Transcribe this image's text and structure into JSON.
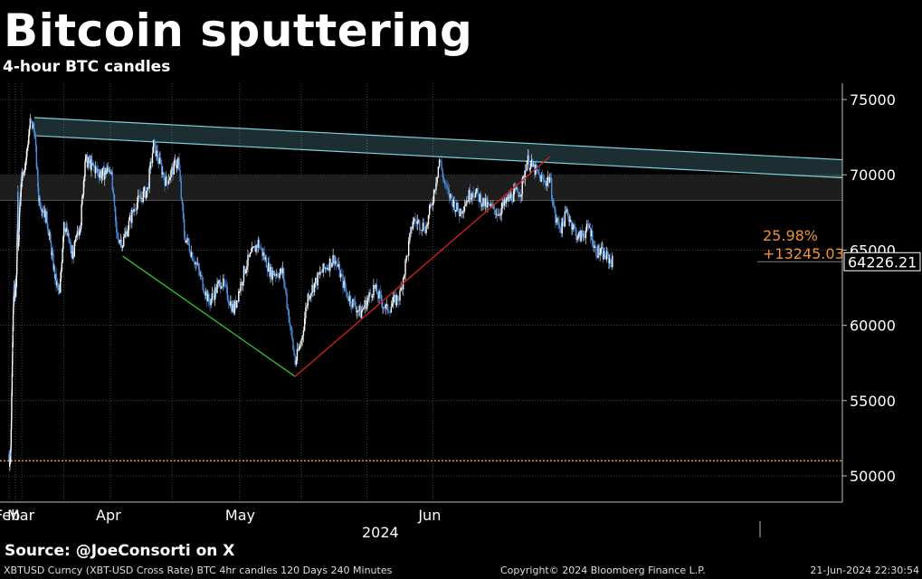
{
  "title": "Bitcoin sputtering",
  "subtitle": "4-hour BTC candles",
  "source": "Source: @JoeConsorti on X",
  "footer": {
    "left": "XBTUSD Curncy (XBT-USD Cross Rate) BTC 4hr candles 120 Days 240 Minutes",
    "center": "Copyright© 2024 Bloomberg Finance L.P.",
    "right": "21-Jun-2024 22:30:54"
  },
  "colors": {
    "background": "#000000",
    "candle_up": "#ffffff",
    "candle_down": "#4a8fe0",
    "channel": "#7fd3e0",
    "support_green": "#2ec42e",
    "support_red": "#d42020",
    "reference": "#f0913a",
    "grid": "#555555"
  },
  "chart_data": {
    "type": "candlestick",
    "title": "Bitcoin sputtering",
    "subtitle": "4-hour BTC candles",
    "x_labels": [
      "Feb",
      "Mar",
      "Apr",
      "May",
      "Jun"
    ],
    "year_label": "2024",
    "y_ticks": [
      50000,
      55000,
      60000,
      65000,
      70000,
      75000
    ],
    "ylim": [
      47500,
      76000
    ],
    "last_price": "64226.21",
    "change_pct": "25.98%",
    "change_abs": "+13245.03",
    "reference_level": 51000,
    "price_path": [
      [
        "2024-02-20",
        51400
      ],
      [
        "2024-02-22",
        51000
      ],
      [
        "2024-02-23",
        51800
      ],
      [
        "2024-02-25",
        57000
      ],
      [
        "2024-02-27",
        61500
      ],
      [
        "2024-02-28",
        62500
      ],
      [
        "2024-03-01",
        62000
      ],
      [
        "2024-03-03",
        63000
      ],
      [
        "2024-03-05",
        68500
      ],
      [
        "2024-03-06",
        65000
      ],
      [
        "2024-03-08",
        68000
      ],
      [
        "2024-03-10",
        69000
      ],
      [
        "2024-03-12",
        71000
      ],
      [
        "2024-03-13",
        73500
      ],
      [
        "2024-03-14",
        73000
      ],
      [
        "2024-03-15",
        68500
      ],
      [
        "2024-03-17",
        67000
      ],
      [
        "2024-03-19",
        63000
      ],
      [
        "2024-03-20",
        62000
      ],
      [
        "2024-03-21",
        67000
      ],
      [
        "2024-03-23",
        64500
      ],
      [
        "2024-03-25",
        67000
      ],
      [
        "2024-03-26",
        71000
      ],
      [
        "2024-03-28",
        70500
      ],
      [
        "2024-03-30",
        70000
      ],
      [
        "2024-04-01",
        70500
      ],
      [
        "2024-04-02",
        66000
      ],
      [
        "2024-04-03",
        65500
      ],
      [
        "2024-04-05",
        68000
      ],
      [
        "2024-04-07",
        69000
      ],
      [
        "2024-04-08",
        72000
      ],
      [
        "2024-04-10",
        69500
      ],
      [
        "2024-04-12",
        71000
      ],
      [
        "2024-04-13",
        66000
      ],
      [
        "2024-04-15",
        64000
      ],
      [
        "2024-04-17",
        61500
      ],
      [
        "2024-04-19",
        63000
      ],
      [
        "2024-04-21",
        61000
      ],
      [
        "2024-04-23",
        64000
      ],
      [
        "2024-04-25",
        65500
      ],
      [
        "2024-04-27",
        63500
      ],
      [
        "2024-04-29",
        63500
      ],
      [
        "2024-04-30",
        60500
      ],
      [
        "2024-05-01",
        57500
      ],
      [
        "2024-05-02",
        59000
      ],
      [
        "2024-05-03",
        62000
      ],
      [
        "2024-05-05",
        63500
      ],
      [
        "2024-05-07",
        64500
      ],
      [
        "2024-05-09",
        62000
      ],
      [
        "2024-05-11",
        60800
      ],
      [
        "2024-05-13",
        62500
      ],
      [
        "2024-05-15",
        61000
      ],
      [
        "2024-05-17",
        62000
      ],
      [
        "2024-05-19",
        67000
      ],
      [
        "2024-05-21",
        66500
      ],
      [
        "2024-05-22",
        68500
      ],
      [
        "2024-05-23",
        71000
      ],
      [
        "2024-05-24",
        69000
      ],
      [
        "2024-05-26",
        67500
      ],
      [
        "2024-05-28",
        69000
      ],
      [
        "2024-05-30",
        68000
      ],
      [
        "2024-06-01",
        67500
      ],
      [
        "2024-06-03",
        68500
      ],
      [
        "2024-06-05",
        69000
      ],
      [
        "2024-06-06",
        71000
      ],
      [
        "2024-06-07",
        70500
      ],
      [
        "2024-06-09",
        69500
      ],
      [
        "2024-06-10",
        69800
      ],
      [
        "2024-06-11",
        67000
      ],
      [
        "2024-06-12",
        66500
      ],
      [
        "2024-06-13",
        67500
      ],
      [
        "2024-06-15",
        65800
      ],
      [
        "2024-06-17",
        66500
      ],
      [
        "2024-06-18",
        65000
      ],
      [
        "2024-06-19",
        64800
      ],
      [
        "2024-06-21",
        64226
      ]
    ],
    "annotations": [
      {
        "type": "channel",
        "from": [
          "2024-03-14",
          73800
        ],
        "to": [
          "2024-06-30",
          71000
        ],
        "width": 1200
      },
      {
        "type": "band",
        "range": [
          68300,
          70000
        ]
      },
      {
        "type": "trendline",
        "color": "green",
        "from": [
          "2024-04-03",
          64600
        ],
        "to": [
          "2024-05-01",
          56600
        ]
      },
      {
        "type": "trendline",
        "color": "red",
        "from": [
          "2024-05-01",
          56600
        ],
        "to": [
          "2024-06-10",
          71200
        ]
      }
    ]
  }
}
